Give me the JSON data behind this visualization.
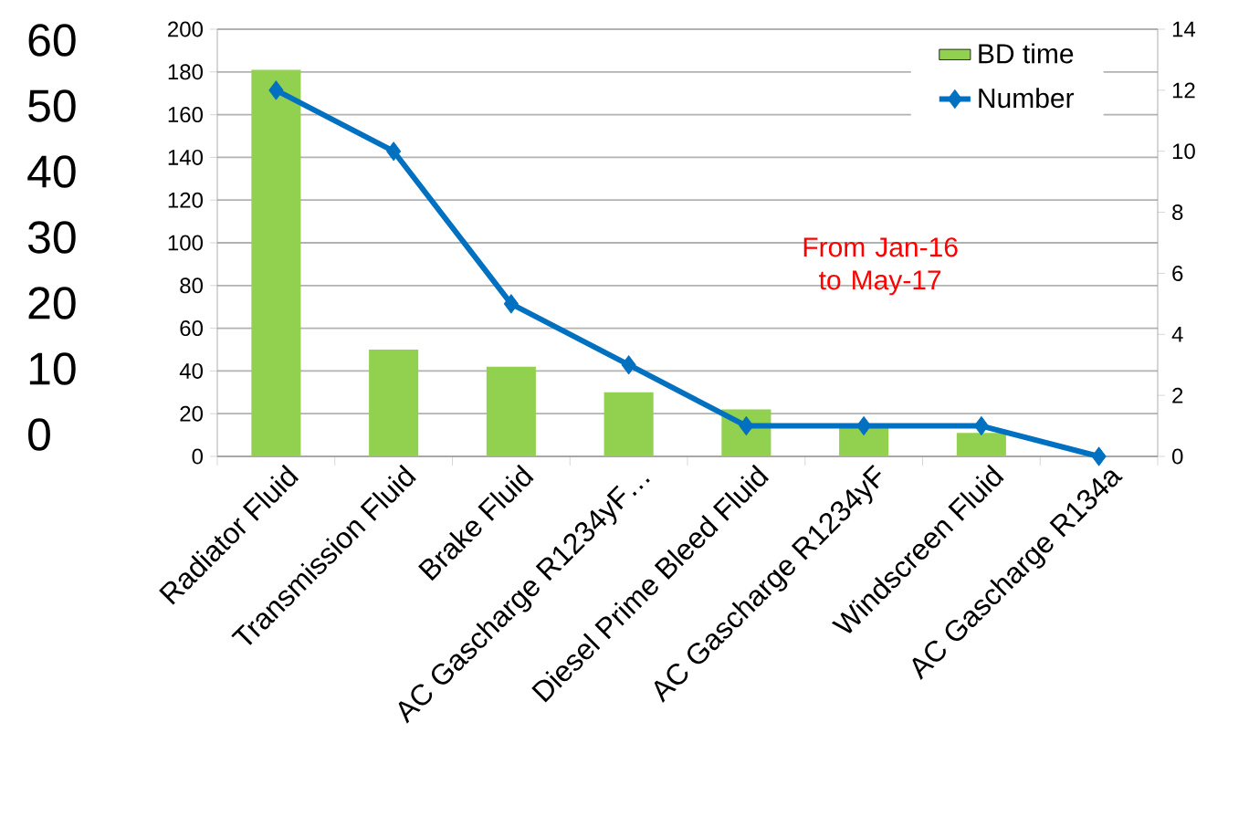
{
  "chart_data": {
    "type": "bar",
    "categories": [
      "Radiator Fluid",
      "Transmission Fluid",
      "Brake Fluid",
      "AC Gascharge R1234yF…",
      "Diesel Prime Bleed Fluid",
      "AC Gascharge R1234yF",
      "Windscreen Fluid",
      "AC Gascharge R134a"
    ],
    "series": [
      {
        "name": "BD time",
        "color": "#92d050",
        "values": [
          181,
          50,
          42,
          30,
          22,
          15,
          11,
          0
        ]
      },
      {
        "name": "Number",
        "type": "line",
        "axis": "y2",
        "color": "#0070c0",
        "values": [
          12,
          10,
          5,
          3,
          1,
          1,
          1,
          0
        ]
      }
    ],
    "ylim": [
      0,
      200
    ],
    "yticks": [
      0,
      20,
      40,
      60,
      80,
      100,
      120,
      140,
      160,
      180,
      200
    ],
    "y2lim": [
      0,
      14
    ],
    "y2ticks": [
      0,
      2,
      4,
      6,
      8,
      10,
      12,
      14
    ],
    "y3lim": [
      0,
      60
    ],
    "y3ticks": [
      0,
      10,
      20,
      30,
      40,
      50,
      60
    ],
    "grid": "y",
    "legend": "top right",
    "marker": "diamond",
    "annotations": [
      "From Jan-16 to May-17"
    ]
  }
}
